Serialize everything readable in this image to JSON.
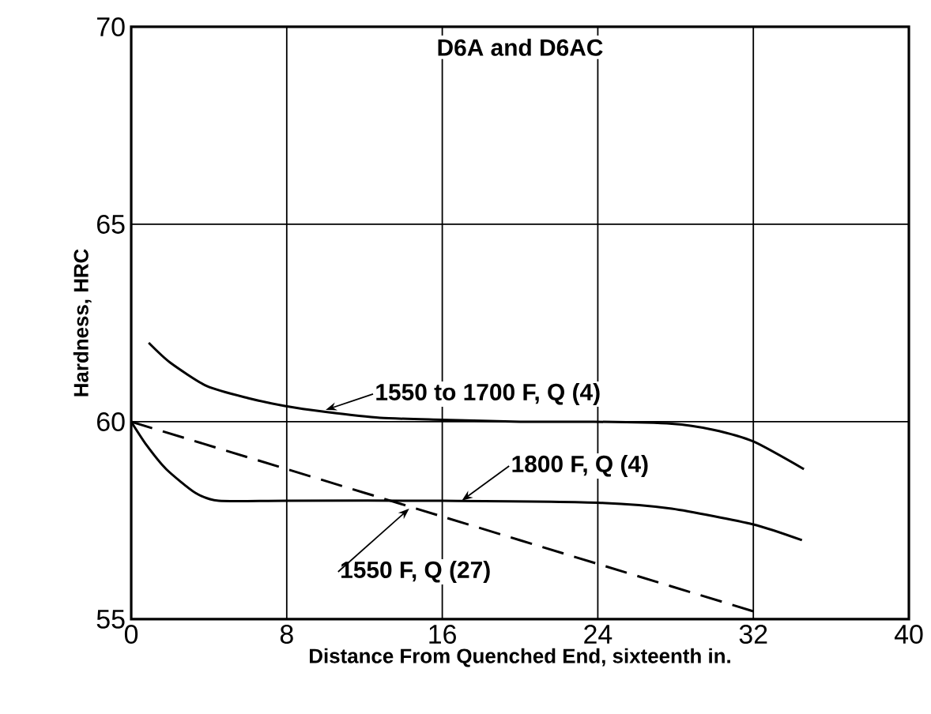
{
  "chart_data": {
    "type": "line",
    "title": "D6A and D6AC",
    "xlabel": "Distance From Quenched End, sixteenth in.",
    "ylabel": "Hardness, HRC",
    "series": [
      {
        "color": "#000000",
        "line_style": "solid",
        "x": [
          0.9,
          2,
          3.9,
          6,
          7.9,
          10,
          12.8,
          16,
          20,
          23.8,
          27.8,
          29.9,
          32,
          34.6
        ],
        "values": [
          62.0,
          61.5,
          60.9,
          60.6,
          60.4,
          60.25,
          60.1,
          60.05,
          60.0,
          60.0,
          59.95,
          59.8,
          59.5,
          58.8
        ]
      },
      {
        "color": "#000000",
        "line_style": "solid",
        "x": [
          0,
          0.8,
          1.8,
          3.3,
          4.5,
          8,
          16,
          24,
          27.8,
          32,
          34.5
        ],
        "values": [
          60.0,
          59.4,
          58.8,
          58.2,
          58.0,
          58.0,
          58.0,
          57.95,
          57.8,
          57.4,
          57.0
        ]
      },
      {
        "color": "#000000",
        "line_style": "dashed",
        "x": [
          0,
          8,
          16,
          24,
          32
        ],
        "values": [
          60.0,
          58.8,
          57.6,
          56.4,
          55.2
        ]
      }
    ],
    "annotations": [
      {
        "text": "1550 to 1700 F, Q (4)",
        "x": 10,
        "y": 60.3
      },
      {
        "text": "1800 F, Q (4)",
        "x": 17,
        "y": 58.0
      },
      {
        "text": "1550 F, Q (27)",
        "x": 14.3,
        "y": 57.8
      }
    ],
    "xlim": [
      0,
      40
    ],
    "ylim": [
      55,
      70
    ],
    "xticks": [
      0,
      8,
      16,
      24,
      32,
      40
    ],
    "yticks": [
      55,
      60,
      65,
      70
    ],
    "grid": true,
    "marker": "none"
  }
}
